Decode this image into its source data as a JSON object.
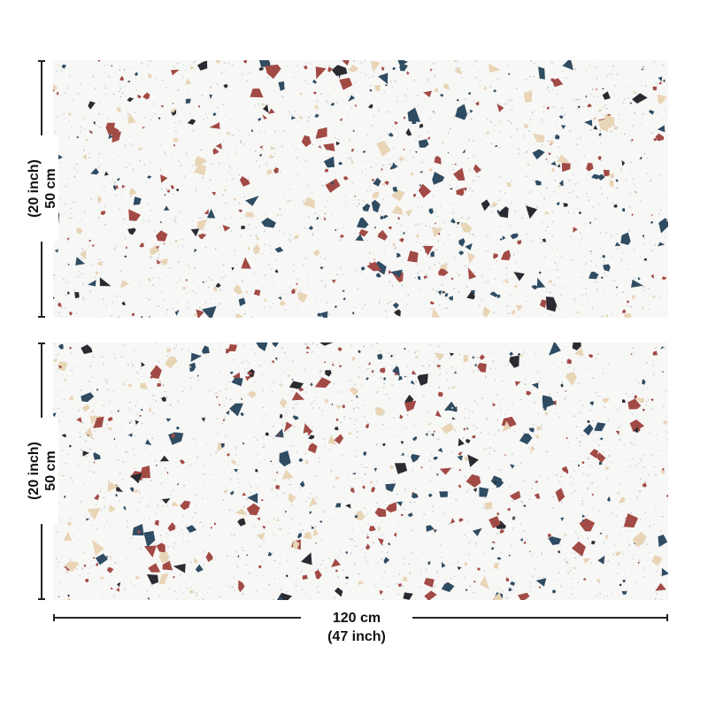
{
  "dimensions": {
    "top_height": {
      "metric": "50 cm",
      "imperial": "(20 inch)"
    },
    "bottom_height": {
      "metric": "50 cm",
      "imperial": "(20 inch)"
    },
    "width": {
      "metric": "120 cm",
      "imperial": "(47 inch)"
    }
  },
  "pattern": {
    "name": "terrazzo",
    "background": "#f7f7f6",
    "chip_colors": [
      "#a24a45",
      "#2f4c62",
      "#2a2b31",
      "#e8d5b6"
    ],
    "speck_color": "#9aa0a6"
  }
}
